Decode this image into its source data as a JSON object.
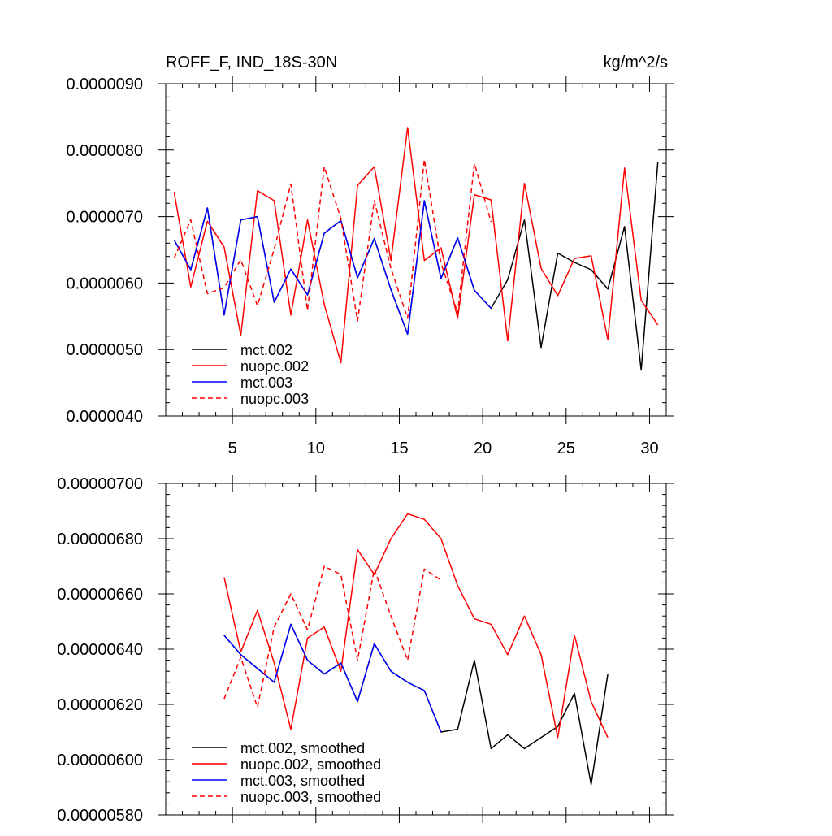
{
  "chart_data": [
    {
      "type": "line",
      "title": "ROFF_F, IND_18S-30N",
      "units": "kg/m^2/s",
      "xlabel": "",
      "ylabel": "",
      "xlim": [
        1,
        31
      ],
      "ylim": [
        4e-06,
        9e-06
      ],
      "x_ticks": [
        5,
        10,
        15,
        20,
        25,
        30
      ],
      "x_tick_labels": [
        "5",
        "10",
        "15",
        "20",
        "25",
        "30"
      ],
      "y_ticks": [
        4e-06,
        5e-06,
        6e-06,
        7e-06,
        8e-06,
        9e-06
      ],
      "y_tick_labels": [
        "0.0000040",
        "0.0000050",
        "0.0000060",
        "0.0000070",
        "0.0000080",
        "0.0000090"
      ],
      "legend_position": "bottom-left",
      "series": [
        {
          "name": "mct.002",
          "color": "#000000",
          "dash": "solid",
          "x": [
            1.5,
            2.5,
            3.5,
            4.5,
            5.5,
            6.5,
            7.5,
            8.5,
            9.5,
            10.5,
            11.5,
            12.5,
            13.5,
            14.5,
            15.5,
            16.5,
            17.5,
            18.5,
            19.5,
            20.5,
            21.5,
            22.5,
            23.5,
            24.5,
            25.5,
            26.5,
            27.5,
            28.5,
            29.5,
            30.5
          ],
          "values": [
            6.65e-06,
            6.2e-06,
            7.13e-06,
            5.52e-06,
            6.95e-06,
            7e-06,
            5.71e-06,
            6.21e-06,
            5.82e-06,
            6.75e-06,
            6.94e-06,
            6.08e-06,
            6.67e-06,
            5.9e-06,
            5.23e-06,
            7.24e-06,
            6.07e-06,
            6.68e-06,
            5.89e-06,
            5.62e-06,
            6.05e-06,
            6.95e-06,
            5.03e-06,
            6.45e-06,
            6.31e-06,
            6.2e-06,
            5.91e-06,
            6.85e-06,
            4.69e-06,
            7.82e-06
          ]
        },
        {
          "name": "nuopc.002",
          "color": "#ff0000",
          "dash": "solid",
          "x": [
            1.5,
            2.5,
            3.5,
            4.5,
            5.5,
            6.5,
            7.5,
            8.5,
            9.5,
            10.5,
            11.5,
            12.5,
            13.5,
            14.5,
            15.5,
            16.5,
            17.5,
            18.5,
            19.5,
            20.5,
            21.5,
            22.5,
            23.5,
            24.5,
            25.5,
            26.5,
            27.5,
            28.5,
            29.5,
            30.5
          ],
          "values": [
            7.37e-06,
            5.94e-06,
            6.93e-06,
            6.54e-06,
            5.21e-06,
            7.39e-06,
            7.24e-06,
            5.52e-06,
            6.95e-06,
            5.68e-06,
            4.8e-06,
            7.47e-06,
            7.75e-06,
            6.34e-06,
            8.34e-06,
            6.34e-06,
            6.53e-06,
            5.47e-06,
            7.33e-06,
            7.25e-06,
            5.13e-06,
            7.5e-06,
            6.22e-06,
            5.81e-06,
            6.37e-06,
            6.41e-06,
            5.15e-06,
            7.73e-06,
            5.74e-06,
            5.37e-06
          ]
        },
        {
          "name": "mct.003",
          "color": "#0000ff",
          "dash": "solid",
          "x": [
            1.5,
            2.5,
            3.5,
            4.5,
            5.5,
            6.5,
            7.5,
            8.5,
            9.5,
            10.5,
            11.5,
            12.5,
            13.5,
            14.5,
            15.5,
            16.5,
            17.5,
            18.5,
            19.5,
            20.5
          ],
          "values": [
            6.65e-06,
            6.2e-06,
            7.13e-06,
            5.52e-06,
            6.95e-06,
            7e-06,
            5.71e-06,
            6.21e-06,
            5.82e-06,
            6.75e-06,
            6.94e-06,
            6.08e-06,
            6.67e-06,
            5.9e-06,
            5.23e-06,
            7.24e-06,
            6.07e-06,
            6.68e-06,
            5.89e-06,
            5.62e-06
          ]
        },
        {
          "name": "nuopc.003",
          "color": "#ff0000",
          "dash": "dashed",
          "x": [
            1.5,
            2.5,
            3.5,
            4.5,
            5.5,
            6.5,
            7.5,
            8.5,
            9.5,
            10.5,
            11.5,
            12.5,
            13.5,
            14.5,
            15.5,
            16.5,
            17.5,
            18.5,
            19.5,
            20.5
          ],
          "values": [
            6.37e-06,
            6.95e-06,
            5.84e-06,
            5.93e-06,
            6.35e-06,
            5.66e-06,
            6.51e-06,
            7.49e-06,
            5.59e-06,
            7.75e-06,
            6.97e-06,
            5.43e-06,
            7.24e-06,
            6.22e-06,
            5.47e-06,
            7.86e-06,
            6.3e-06,
            5.55e-06,
            7.8e-06,
            6.92e-06
          ]
        }
      ]
    },
    {
      "type": "line",
      "title": "",
      "xlabel": "",
      "ylabel": "",
      "xlim": [
        1,
        31
      ],
      "ylim": [
        5.8e-06,
        7e-06
      ],
      "x_ticks": [
        5,
        10,
        15,
        20,
        25,
        30
      ],
      "x_tick_labels": [],
      "y_ticks": [
        5.8e-06,
        6e-06,
        6.2e-06,
        6.4e-06,
        6.6e-06,
        6.8e-06,
        7e-06
      ],
      "y_tick_labels": [
        "0.00000580",
        "0.00000600",
        "0.00000620",
        "0.00000640",
        "0.00000660",
        "0.00000680",
        "0.00000700"
      ],
      "legend_position": "bottom-left",
      "series": [
        {
          "name": "mct.002, smoothed",
          "color": "#000000",
          "dash": "solid",
          "x": [
            4.5,
            5.5,
            6.5,
            7.5,
            8.5,
            9.5,
            10.5,
            11.5,
            12.5,
            13.5,
            14.5,
            15.5,
            16.5,
            17.5,
            18.5,
            19.5,
            20.5,
            21.5,
            22.5,
            23.5,
            24.5,
            25.5,
            26.5,
            27.5
          ],
          "values": [
            6.45e-06,
            6.38e-06,
            6.33e-06,
            6.28e-06,
            6.49e-06,
            6.36e-06,
            6.31e-06,
            6.35e-06,
            6.21e-06,
            6.42e-06,
            6.32e-06,
            6.28e-06,
            6.25e-06,
            6.1e-06,
            6.11e-06,
            6.36e-06,
            6.04e-06,
            6.09e-06,
            6.04e-06,
            6.08e-06,
            6.12e-06,
            6.24e-06,
            5.91e-06,
            6.31e-06
          ]
        },
        {
          "name": "nuopc.002, smoothed",
          "color": "#ff0000",
          "dash": "solid",
          "x": [
            4.5,
            5.5,
            6.5,
            7.5,
            8.5,
            9.5,
            10.5,
            11.5,
            12.5,
            13.5,
            14.5,
            15.5,
            16.5,
            17.5,
            18.5,
            19.5,
            20.5,
            21.5,
            22.5,
            23.5,
            24.5,
            25.5,
            26.5,
            27.5
          ],
          "values": [
            6.66e-06,
            6.39e-06,
            6.54e-06,
            6.35e-06,
            6.11e-06,
            6.44e-06,
            6.48e-06,
            6.32e-06,
            6.76e-06,
            6.67e-06,
            6.8e-06,
            6.89e-06,
            6.87e-06,
            6.8e-06,
            6.63e-06,
            6.51e-06,
            6.49e-06,
            6.38e-06,
            6.52e-06,
            6.38e-06,
            6.08e-06,
            6.45e-06,
            6.21e-06,
            6.08e-06
          ]
        },
        {
          "name": "mct.003, smoothed",
          "color": "#0000ff",
          "dash": "solid",
          "x": [
            4.5,
            5.5,
            6.5,
            7.5,
            8.5,
            9.5,
            10.5,
            11.5,
            12.5,
            13.5,
            14.5,
            15.5,
            16.5,
            17.5
          ],
          "values": [
            6.45e-06,
            6.38e-06,
            6.33e-06,
            6.28e-06,
            6.49e-06,
            6.36e-06,
            6.31e-06,
            6.35e-06,
            6.21e-06,
            6.42e-06,
            6.32e-06,
            6.28e-06,
            6.25e-06,
            6.1e-06
          ]
        },
        {
          "name": "nuopc.003, smoothed",
          "color": "#ff0000",
          "dash": "dashed",
          "x": [
            4.5,
            5.5,
            6.5,
            7.5,
            8.5,
            9.5,
            10.5,
            11.5,
            12.5,
            13.5,
            14.5,
            15.5,
            16.5,
            17.5
          ],
          "values": [
            6.22e-06,
            6.37e-06,
            6.19e-06,
            6.48e-06,
            6.6e-06,
            6.47e-06,
            6.7e-06,
            6.67e-06,
            6.36e-06,
            6.69e-06,
            6.52e-06,
            6.36e-06,
            6.69e-06,
            6.65e-06
          ]
        }
      ]
    }
  ]
}
